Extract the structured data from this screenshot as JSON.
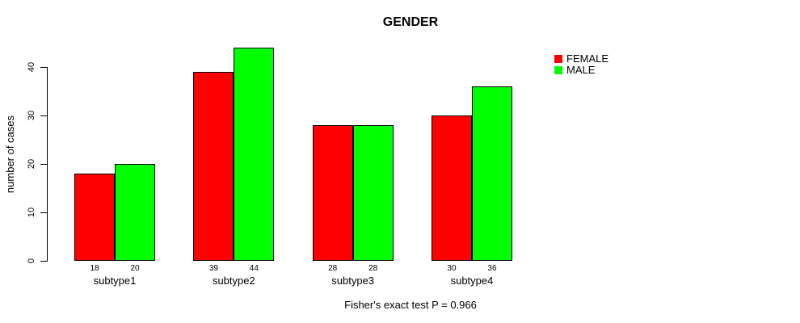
{
  "chart_data": {
    "type": "bar",
    "title": "GENDER",
    "ylabel": "number of cases",
    "xlabel": "",
    "categories": [
      "subtype1",
      "subtype2",
      "subtype3",
      "subtype4"
    ],
    "series": [
      {
        "name": "FEMALE",
        "color": "#ff0000",
        "values": [
          18,
          39,
          28,
          30
        ]
      },
      {
        "name": "MALE",
        "color": "#00ff00",
        "values": [
          20,
          44,
          28,
          36
        ]
      }
    ],
    "ylim": [
      0,
      44
    ],
    "yticks": [
      0,
      10,
      20,
      30,
      40
    ],
    "grid": false,
    "legend_position": "top-right",
    "bar_value_labels": true,
    "caption": "Fisher's exact test P = 0.966",
    "colors": {
      "female": "#ff0000",
      "male": "#00ff00",
      "axis": "#000000",
      "background": "#ffffff"
    }
  }
}
